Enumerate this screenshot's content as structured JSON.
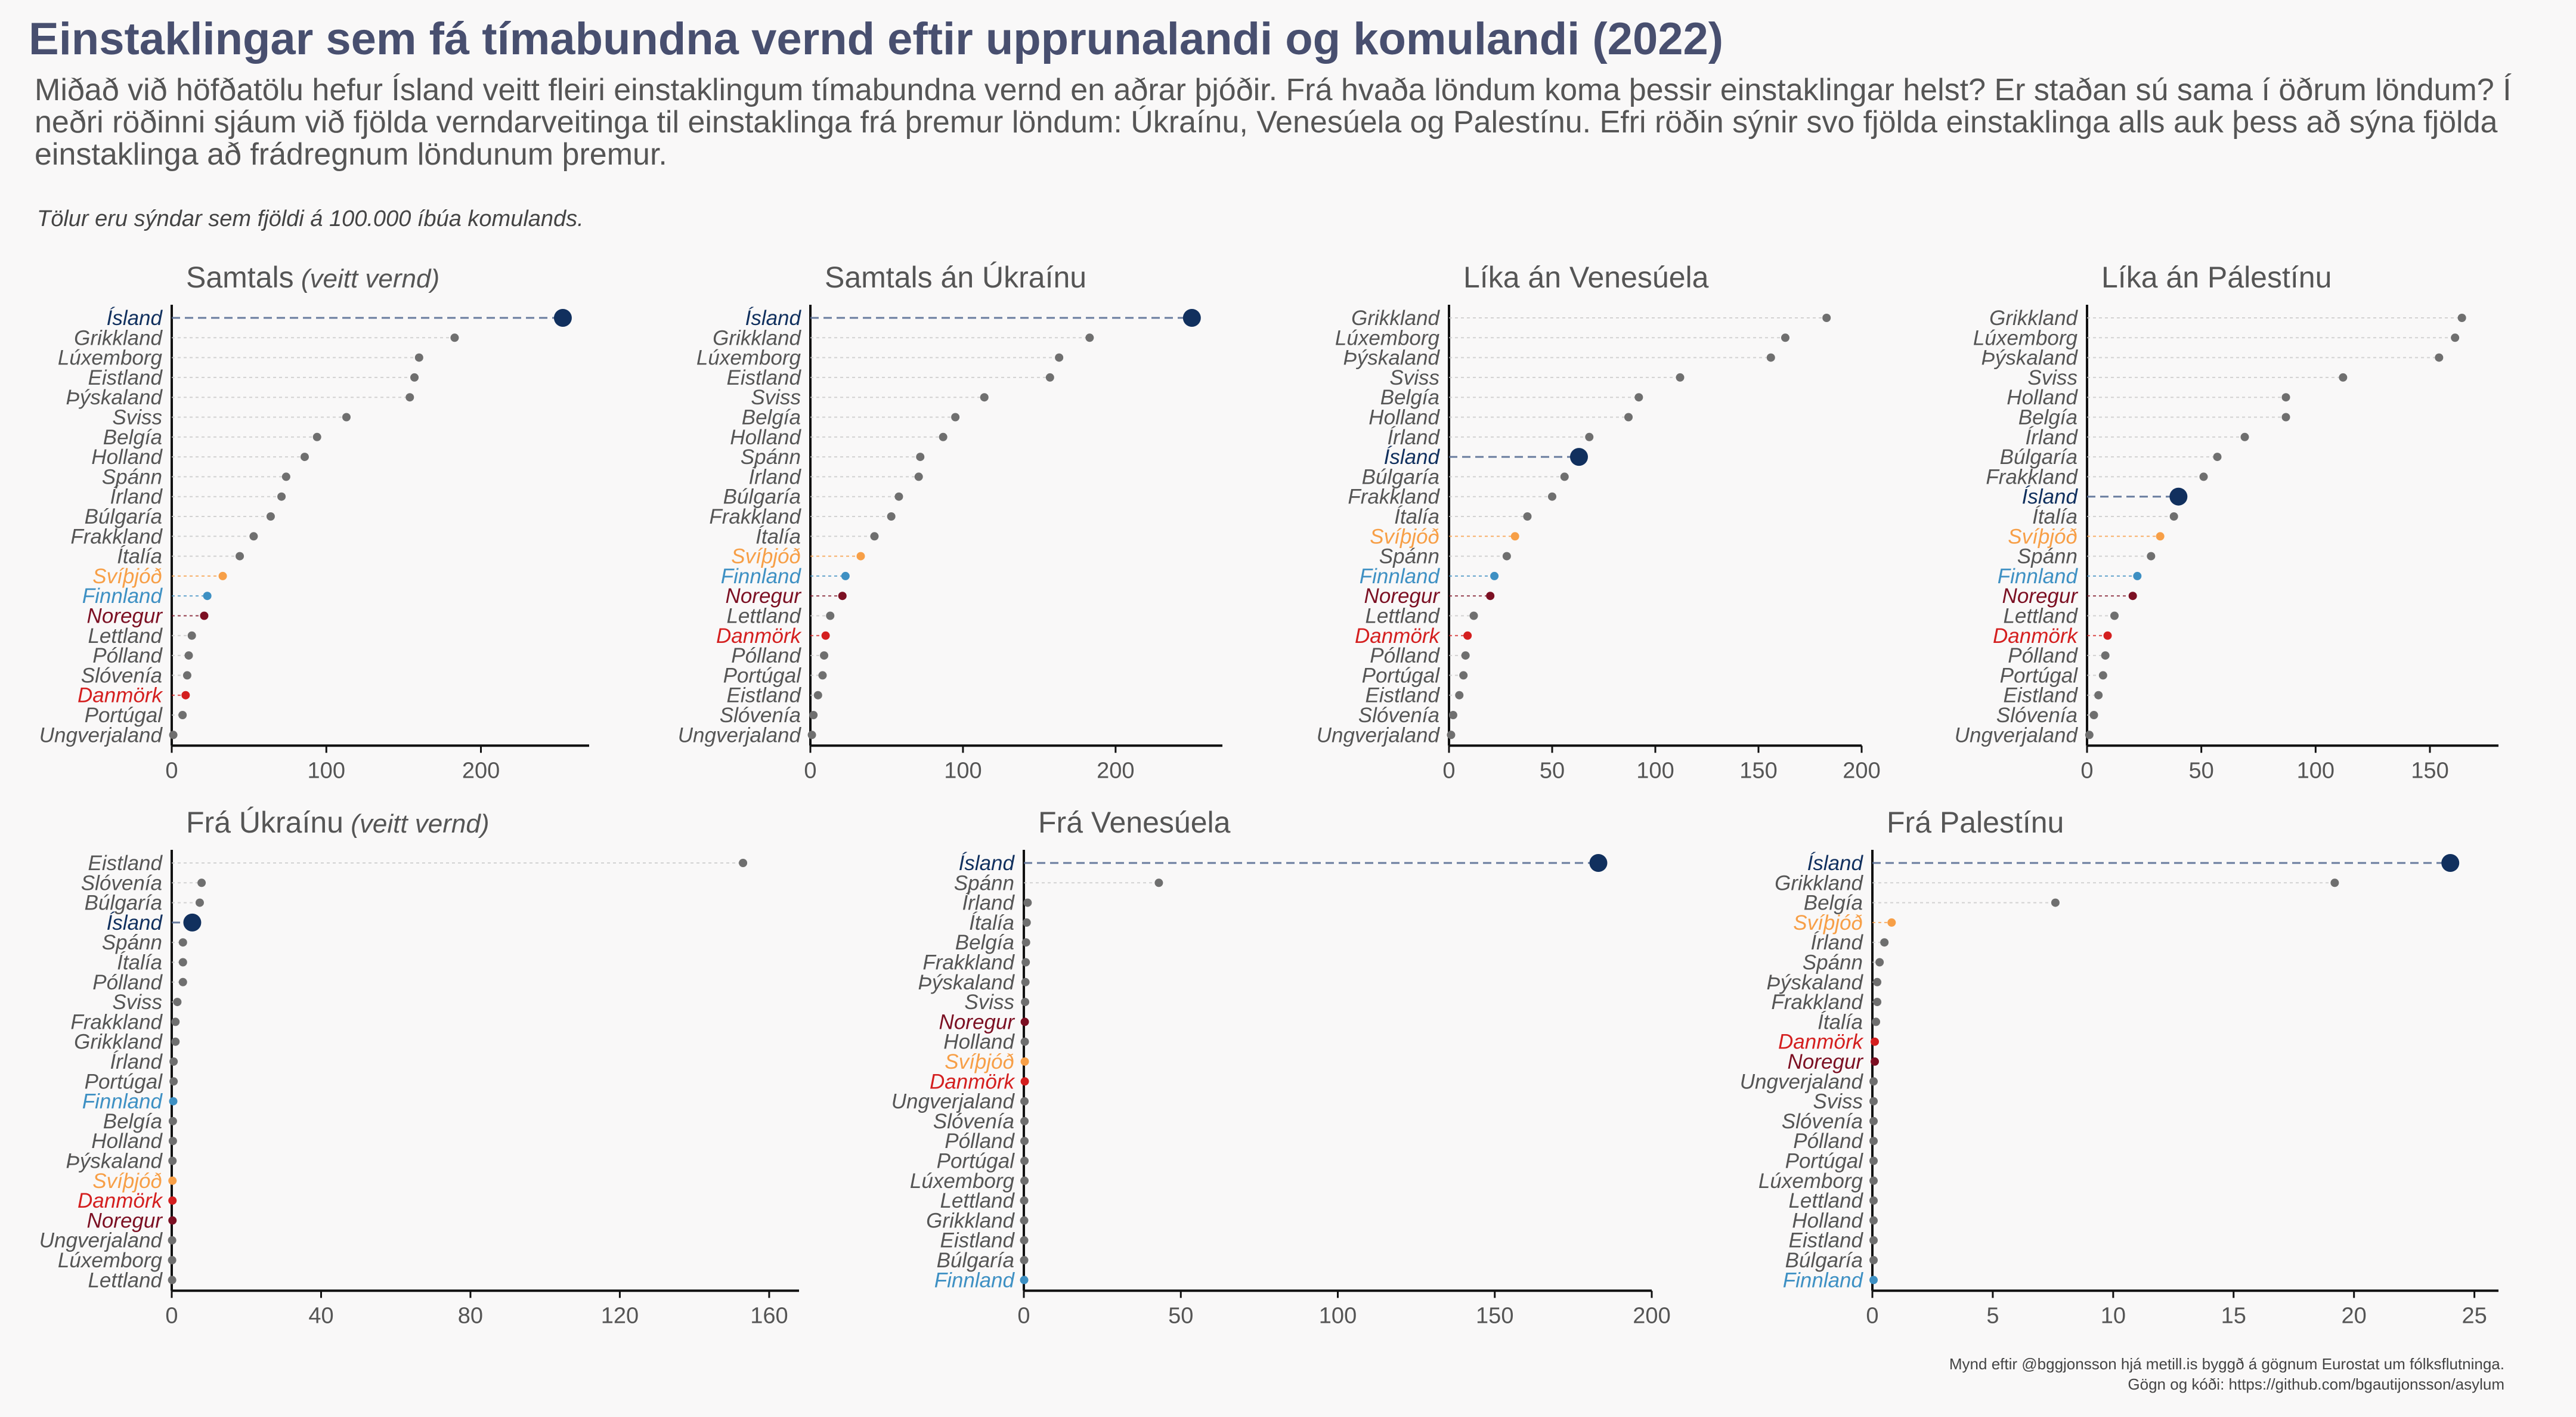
{
  "title": "Einstaklingar sem fá tímabundna vernd eftir upprunalandi og komulandi (2022)",
  "subtitle": "Miðað við höfðatölu hefur Ísland veitt fleiri einstaklingum tímabundna vernd en aðrar þjóðir. Frá hvaða löndum koma þessir einstaklingar helst? Er staðan sú sama í öðrum löndum? Í neðri röðinni sjáum við fjölda verndarveitinga til einstaklinga frá þremur löndum: Úkraínu, Venesúela og Palestínu. Efri röðin sýnir svo fjölda einstaklinga alls auk þess að sýna fjölda einstaklinga að frádregnum löndunum þremur.",
  "note": "Tölur eru sýndar sem fjöldi á 100.000 íbúa komulands.",
  "caption": {
    "line1": "Mynd eftir @bggjonsson hjá metill.is byggð á gögnum Eurostat um fólksflutninga.",
    "line2": "Gögn og kóði: https://github.com/bgautijonsson/asylum"
  },
  "colors": {
    "Ísland": "#11305e",
    "Svíþjóð": "#f79f47",
    "Finnland": "#3e90c3",
    "Noregur": "#7c1023",
    "Danmörk": "#d41f1f",
    "other": "#6f6f6f",
    "axis": "#111111",
    "tick_label": "#555555",
    "panel_title": "#555555"
  },
  "chart_data": [
    {
      "type": "scatter",
      "title": "Samtals",
      "title_note": "(veitt vernd)",
      "xlim": [
        0,
        270
      ],
      "xticks": [
        0,
        100,
        200
      ],
      "categories": [
        "Ísland",
        "Grikkland",
        "Lúxemborg",
        "Eistland",
        "Þýskaland",
        "Sviss",
        "Belgía",
        "Holland",
        "Spánn",
        "Írland",
        "Búlgaría",
        "Frakkland",
        "Ítalía",
        "Svíþjóð",
        "Finnland",
        "Noregur",
        "Lettland",
        "Pólland",
        "Slóvenía",
        "Danmörk",
        "Portúgal",
        "Ungverjaland"
      ],
      "values": [
        253,
        183,
        160,
        157,
        154,
        113,
        94,
        86,
        74,
        71,
        64,
        53,
        44,
        33,
        23,
        21,
        13,
        11,
        10,
        9,
        7,
        1
      ]
    },
    {
      "type": "scatter",
      "title": "Samtals án Úkraínu",
      "xlim": [
        0,
        270
      ],
      "xticks": [
        0,
        100,
        200
      ],
      "categories": [
        "Ísland",
        "Grikkland",
        "Lúxemborg",
        "Eistland",
        "Sviss",
        "Belgía",
        "Holland",
        "Spánn",
        "Írland",
        "Búlgaría",
        "Frakkland",
        "Ítalía",
        "Svíþjóð",
        "Finnland",
        "Noregur",
        "Lettland",
        "Danmörk",
        "Pólland",
        "Portúgal",
        "Eistland",
        "Slóvenía",
        "Ungverjaland"
      ],
      "values": [
        250,
        183,
        163,
        157,
        114,
        95,
        87,
        72,
        71,
        58,
        53,
        42,
        33,
        23,
        21,
        13,
        10,
        9,
        8,
        5,
        2,
        1
      ]
    },
    {
      "type": "scatter",
      "title": "Líka án Venesúela",
      "xlim": [
        0,
        200
      ],
      "xticks": [
        0,
        50,
        100,
        150,
        200
      ],
      "categories": [
        "Grikkland",
        "Lúxemborg",
        "Þýskaland",
        "Sviss",
        "Belgía",
        "Holland",
        "Írland",
        "Ísland",
        "Búlgaría",
        "Frakkland",
        "Ítalía",
        "Svíþjóð",
        "Spánn",
        "Finnland",
        "Noregur",
        "Lettland",
        "Danmörk",
        "Pólland",
        "Portúgal",
        "Eistland",
        "Slóvenía",
        "Ungverjaland"
      ],
      "values": [
        183,
        163,
        156,
        112,
        92,
        87,
        68,
        63,
        56,
        50,
        38,
        32,
        28,
        22,
        20,
        12,
        9,
        8,
        7,
        5,
        2,
        1
      ]
    },
    {
      "type": "scatter",
      "title": "Líka án Pálestínu",
      "xlim": [
        0,
        180
      ],
      "xticks": [
        0,
        50,
        100,
        150
      ],
      "categories": [
        "Grikkland",
        "Lúxemborg",
        "Þýskaland",
        "Sviss",
        "Holland",
        "Belgía",
        "Írland",
        "Búlgaría",
        "Frakkland",
        "Ísland",
        "Ítalía",
        "Svíþjóð",
        "Spánn",
        "Finnland",
        "Noregur",
        "Lettland",
        "Danmörk",
        "Pólland",
        "Portúgal",
        "Eistland",
        "Slóvenía",
        "Ungverjaland"
      ],
      "values": [
        164,
        161,
        154,
        112,
        87,
        87,
        69,
        57,
        51,
        40,
        38,
        32,
        28,
        22,
        20,
        12,
        9,
        8,
        7,
        5,
        3,
        1
      ]
    },
    {
      "type": "scatter",
      "title": "Frá Úkraínu",
      "title_note": "(veitt vernd)",
      "xlim": [
        0,
        168
      ],
      "xticks": [
        0,
        40,
        80,
        120,
        160
      ],
      "categories": [
        "Eistland",
        "Slóvenía",
        "Búlgaría",
        "Ísland",
        "Spánn",
        "Ítalía",
        "Pólland",
        "Sviss",
        "Frakkland",
        "Grikkland",
        "Írland",
        "Portúgal",
        "Finnland",
        "Belgía",
        "Holland",
        "Þýskaland",
        "Svíþjóð",
        "Danmörk",
        "Noregur",
        "Ungverjaland",
        "Lúxemborg",
        "Lettland"
      ],
      "values": [
        153,
        8,
        7.5,
        5.5,
        3,
        3,
        3,
        1.5,
        1,
        1,
        0.5,
        0.5,
        0.4,
        0.3,
        0.3,
        0.2,
        0.2,
        0.2,
        0.2,
        0.1,
        0.1,
        0.1
      ]
    },
    {
      "type": "scatter",
      "title": "Frá Venesúela",
      "xlim": [
        0,
        200
      ],
      "xticks": [
        0,
        50,
        100,
        150,
        200
      ],
      "categories": [
        "Ísland",
        "Spánn",
        "Írland",
        "Ítalía",
        "Belgía",
        "Frakkland",
        "Þýskaland",
        "Sviss",
        "Noregur",
        "Holland",
        "Svíþjóð",
        "Danmörk",
        "Ungverjaland",
        "Slóvenía",
        "Pólland",
        "Portúgal",
        "Lúxemborg",
        "Lettland",
        "Grikkland",
        "Eistland",
        "Búlgaría",
        "Finnland"
      ],
      "values": [
        183,
        43,
        1.2,
        0.9,
        0.7,
        0.6,
        0.5,
        0.4,
        0.3,
        0.3,
        0.3,
        0.3,
        0.2,
        0.2,
        0.2,
        0.2,
        0.2,
        0.1,
        0.1,
        0.1,
        0.1,
        0.1
      ]
    },
    {
      "type": "scatter",
      "title": "Frá Palestínu",
      "xlim": [
        0,
        26
      ],
      "xticks": [
        0,
        5,
        10,
        15,
        20,
        25
      ],
      "categories": [
        "Ísland",
        "Grikkland",
        "Belgía",
        "Svíþjóð",
        "Írland",
        "Spánn",
        "Þýskaland",
        "Frakkland",
        "Ítalía",
        "Danmörk",
        "Noregur",
        "Ungverjaland",
        "Sviss",
        "Slóvenía",
        "Pólland",
        "Portúgal",
        "Lúxemborg",
        "Lettland",
        "Holland",
        "Eistland",
        "Búlgaría",
        "Finnland"
      ],
      "values": [
        24,
        19.2,
        7.6,
        0.8,
        0.5,
        0.3,
        0.2,
        0.2,
        0.15,
        0.1,
        0.1,
        0.05,
        0.05,
        0.05,
        0.05,
        0.05,
        0.05,
        0.05,
        0.05,
        0.05,
        0.05,
        0.05
      ]
    }
  ]
}
